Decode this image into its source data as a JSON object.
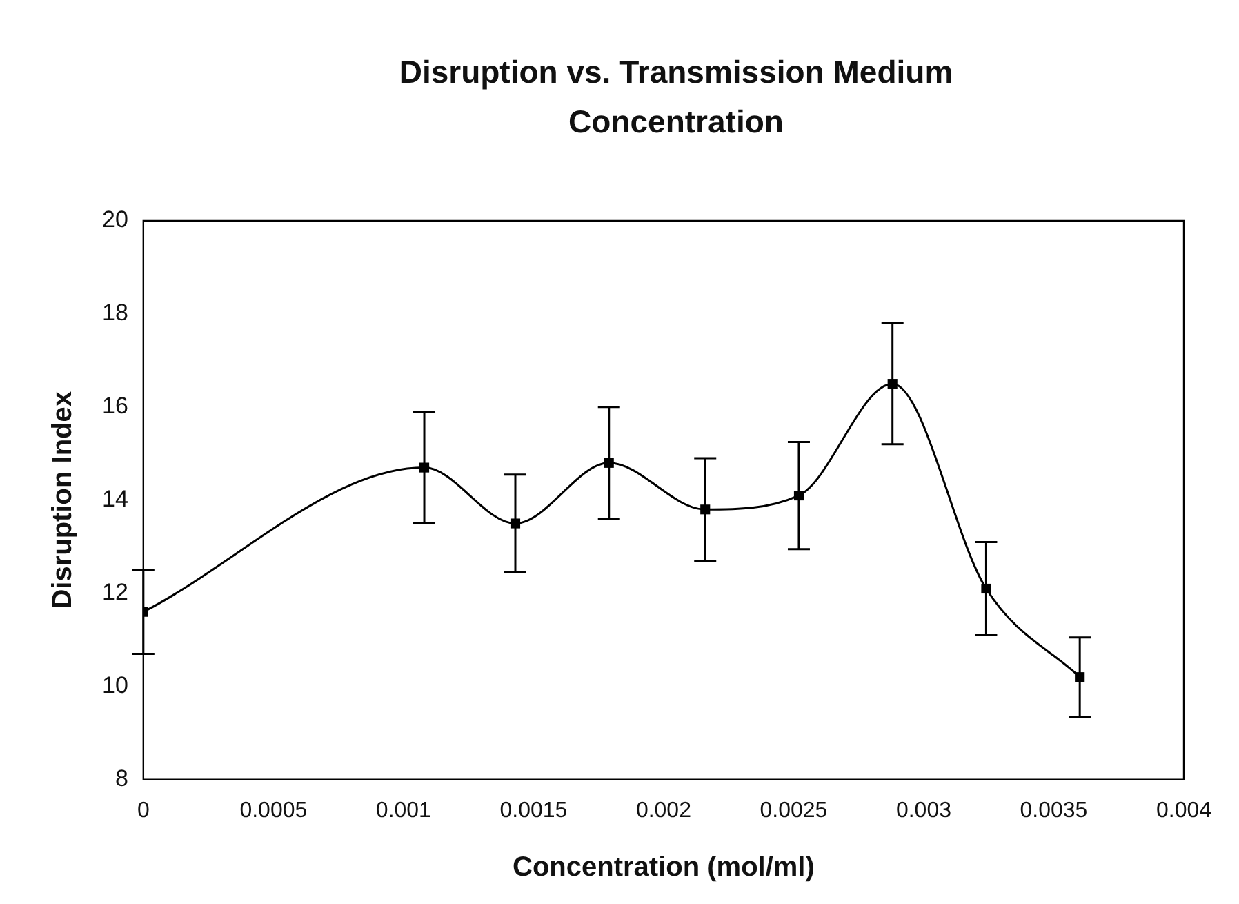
{
  "chart_data": {
    "type": "line",
    "title": "Disruption vs. Transmission Medium Concentration",
    "xlabel": "Concentration (mol/ml)",
    "ylabel": "Disruption Index",
    "x": [
      0,
      0.00108,
      0.00143,
      0.00179,
      0.00216,
      0.00252,
      0.00288,
      0.00324,
      0.0036
    ],
    "series": [
      {
        "color": "#000000",
        "values": [
          11.6,
          14.7,
          13.5,
          14.8,
          13.8,
          14.1,
          16.5,
          12.1,
          10.2
        ],
        "errors": [
          0.9,
          1.2,
          1.05,
          1.2,
          1.1,
          1.15,
          1.3,
          1.0,
          0.85
        ]
      }
    ],
    "xlim": [
      0,
      0.004
    ],
    "xticks": [
      0,
      0.0005,
      0.001,
      0.0015,
      0.002,
      0.0025,
      0.003,
      0.0035,
      0.004
    ],
    "ylim": [
      8,
      20
    ],
    "yticks": [
      8,
      10,
      12,
      14,
      16,
      18,
      20
    ],
    "grid": false,
    "legend": false,
    "marker": "square",
    "line_style": "solid"
  }
}
